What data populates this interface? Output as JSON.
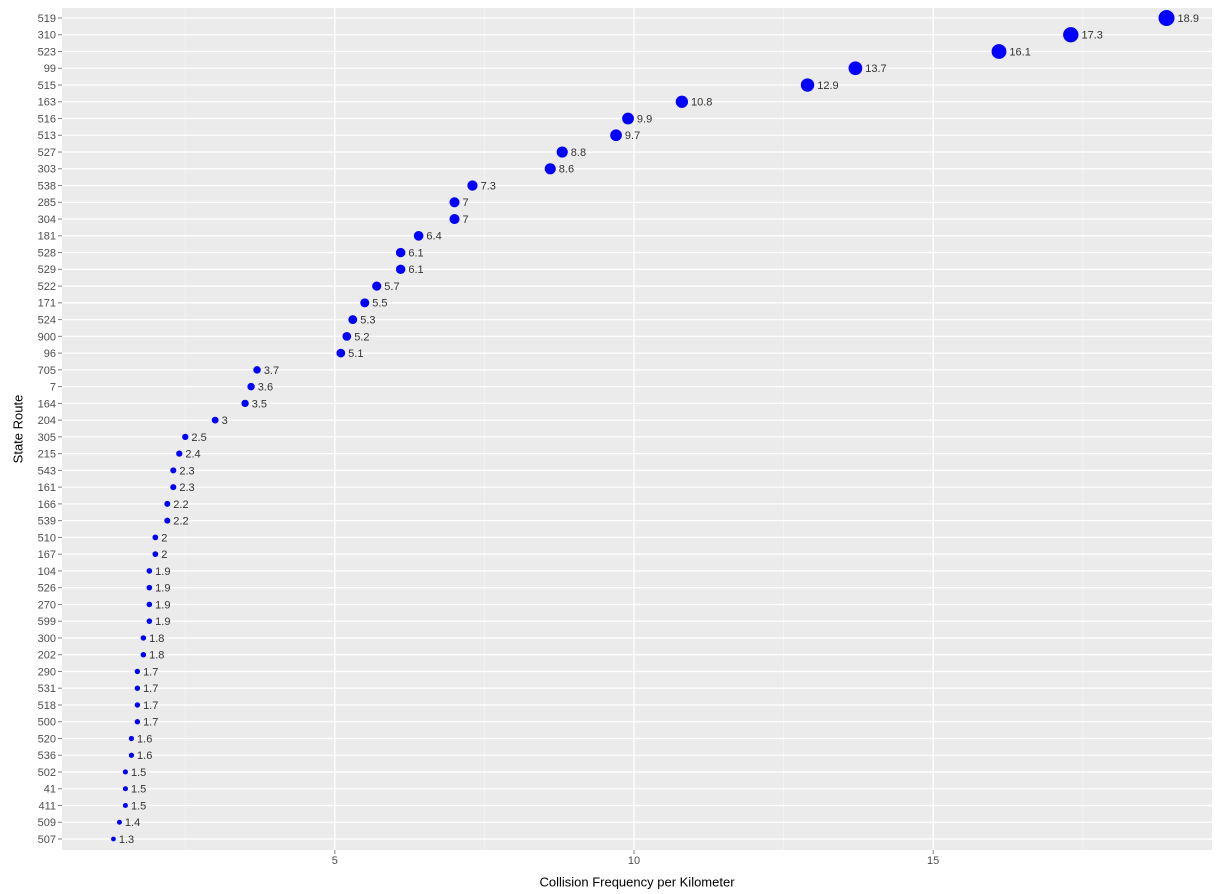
{
  "chart_data": {
    "type": "dot",
    "x_label": "Collision Frequency per Kilometer",
    "y_label": "State Route",
    "categories": [
      "519",
      "310",
      "523",
      "99",
      "515",
      "163",
      "516",
      "513",
      "527",
      "303",
      "538",
      "285",
      "304",
      "181",
      "528",
      "529",
      "522",
      "171",
      "524",
      "900",
      "96",
      "705",
      "7",
      "164",
      "204",
      "305",
      "215",
      "543",
      "161",
      "166",
      "539",
      "510",
      "167",
      "104",
      "526",
      "270",
      "599",
      "300",
      "202",
      "290",
      "531",
      "518",
      "500",
      "520",
      "536",
      "502",
      "41",
      "411",
      "509",
      "507"
    ],
    "values": [
      18.9,
      17.3,
      16.1,
      13.7,
      12.9,
      10.8,
      9.9,
      9.7,
      8.8,
      8.6,
      7.3,
      7,
      7,
      6.4,
      6.1,
      6.1,
      5.7,
      5.5,
      5.3,
      5.2,
      5.1,
      3.7,
      3.6,
      3.5,
      3,
      2.5,
      2.4,
      2.3,
      2.3,
      2.2,
      2.2,
      2,
      2,
      1.9,
      1.9,
      1.9,
      1.9,
      1.8,
      1.8,
      1.7,
      1.7,
      1.7,
      1.7,
      1.6,
      1.6,
      1.5,
      1.5,
      1.5,
      1.4,
      1.3
    ],
    "color": "#0000ff",
    "xlim": [
      0.44,
      19.66
    ],
    "xticks": [
      5,
      10,
      15
    ],
    "grid": true
  }
}
